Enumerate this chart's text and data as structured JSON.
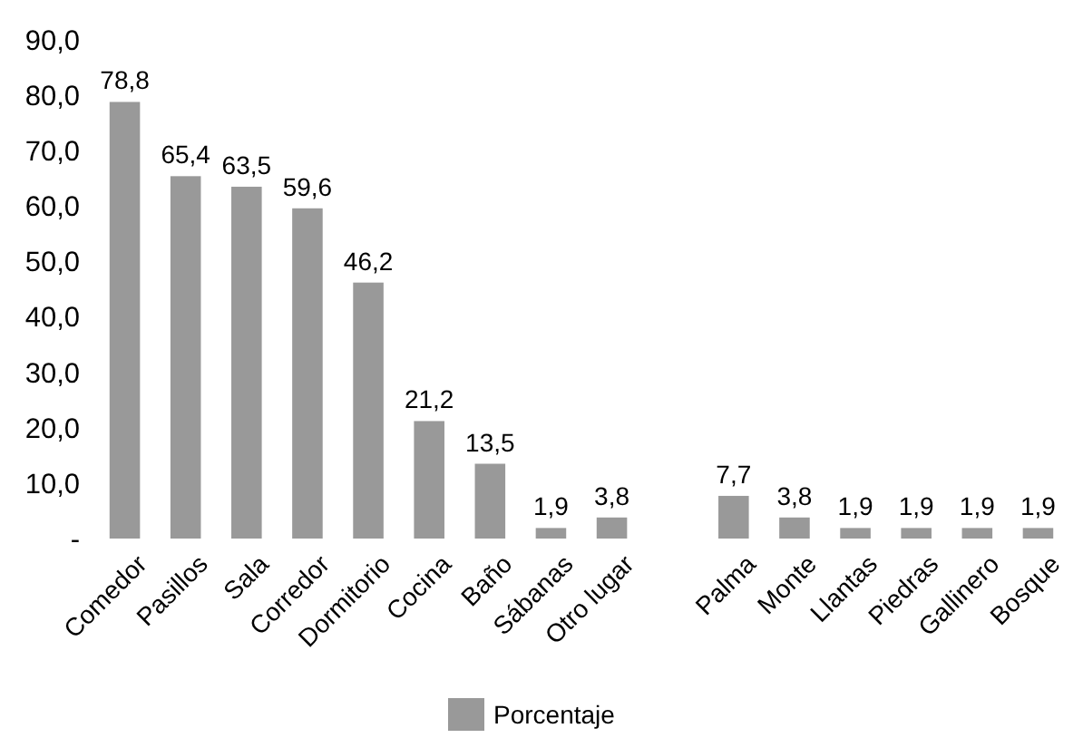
{
  "chart_data": {
    "type": "bar",
    "categories": [
      "Comedor",
      "Pasillos",
      "Sala",
      "Corredor",
      "Dormitorio",
      "Cocina",
      "Baño",
      "Sábanas",
      "Otro lugar",
      null,
      "Palma",
      "Monte",
      "Llantas",
      "Piedras",
      "Gallinero",
      "Bosque"
    ],
    "series": [
      {
        "name": "Porcentaje",
        "color": "#999999",
        "values": [
          78.8,
          65.4,
          63.5,
          59.6,
          46.2,
          21.2,
          13.5,
          1.9,
          3.8,
          null,
          7.7,
          3.8,
          1.9,
          1.9,
          1.9,
          1.9
        ],
        "value_labels": [
          "78,8",
          "65,4",
          "63,5",
          "59,6",
          "46,2",
          "21,2",
          "13,5",
          "1,9",
          "3,8",
          null,
          "7,7",
          "3,8",
          "1,9",
          "1,9",
          "1,9",
          "1,9"
        ]
      }
    ],
    "ylim": [
      0,
      90
    ],
    "yticks": [
      {
        "value": 0,
        "label": "-"
      },
      {
        "value": 10,
        "label": "10,0"
      },
      {
        "value": 20,
        "label": "20,0"
      },
      {
        "value": 30,
        "label": "30,0"
      },
      {
        "value": 40,
        "label": "40,0"
      },
      {
        "value": 50,
        "label": "50,0"
      },
      {
        "value": 60,
        "label": "60,0"
      },
      {
        "value": 70,
        "label": "70,0"
      },
      {
        "value": 80,
        "label": "80,0"
      },
      {
        "value": 90,
        "label": "90,0"
      }
    ],
    "legend": "bottom"
  }
}
